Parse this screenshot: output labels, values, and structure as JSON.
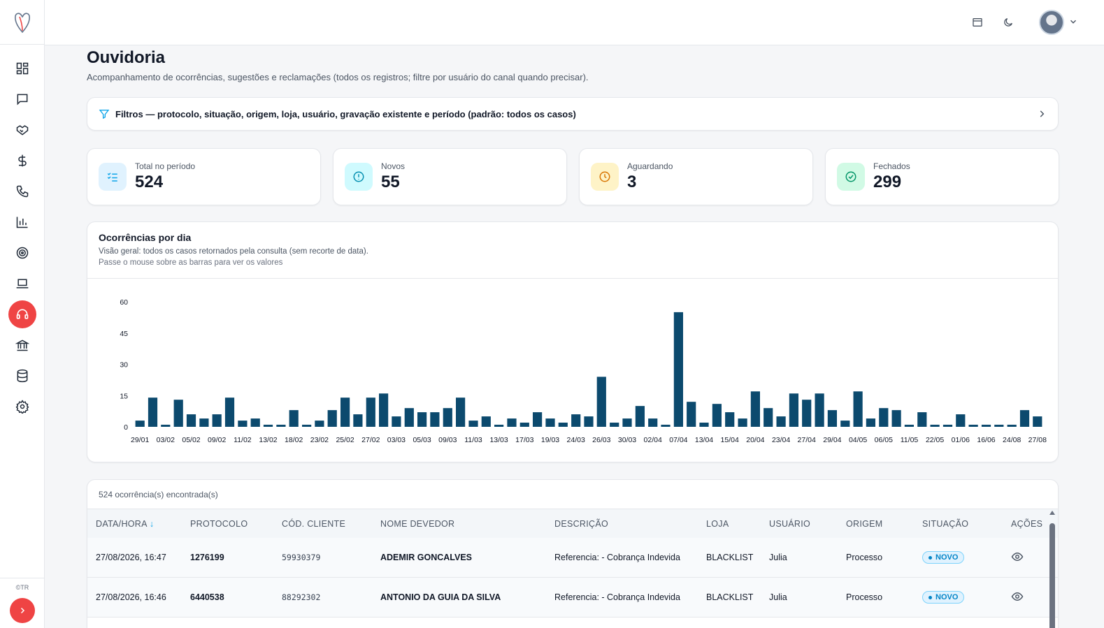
{
  "sidebar": {
    "items": [
      {
        "name": "dashboard",
        "icon": "grid-icon"
      },
      {
        "name": "messages",
        "icon": "message-icon"
      },
      {
        "name": "deals",
        "icon": "handshake-icon"
      },
      {
        "name": "finance",
        "icon": "dollar-icon"
      },
      {
        "name": "calls",
        "icon": "phone-icon"
      },
      {
        "name": "reports",
        "icon": "bar-chart-icon"
      },
      {
        "name": "goals",
        "icon": "target-icon"
      },
      {
        "name": "devices",
        "icon": "laptop-icon"
      },
      {
        "name": "ombudsman",
        "icon": "headset-icon",
        "active": true
      },
      {
        "name": "banks",
        "icon": "bank-icon"
      },
      {
        "name": "database",
        "icon": "database-icon"
      },
      {
        "name": "settings",
        "icon": "gear-icon"
      }
    ],
    "copyright": "©TR"
  },
  "page": {
    "title": "Ouvidoria",
    "subtitle": "Acompanhamento de ocorrências, sugestões e reclamações (todos os registros; filtre por usuário do canal quando precisar)."
  },
  "filters": {
    "label": "Filtros — protocolo, situação, origem, loja, usuário, gravação existente e período (padrão: todos os casos)"
  },
  "stats": [
    {
      "label": "Total no período",
      "value": "524",
      "color": "#0ea5e9",
      "bg": "#e0f2fe",
      "icon": "list-check-icon"
    },
    {
      "label": "Novos",
      "value": "55",
      "color": "#0891b2",
      "bg": "#cffafe",
      "icon": "alert-circle-icon"
    },
    {
      "label": "Aguardando",
      "value": "3",
      "color": "#d97706",
      "bg": "#fef3c7",
      "icon": "clock-icon"
    },
    {
      "label": "Fechados",
      "value": "299",
      "color": "#059669",
      "bg": "#d1fae5",
      "icon": "check-circle-icon"
    }
  ],
  "chart_title": "Ocorrências por dia",
  "chart_subtitle": "Visão geral: todos os casos retornados pela consulta (sem recorte de data).",
  "chart_hint": "Passe o mouse sobre as barras para ver os valores",
  "chart_data": {
    "type": "bar",
    "title": "Ocorrências por dia",
    "xlabel": "",
    "ylabel": "",
    "ylim": [
      0,
      60
    ],
    "yticks": [
      0,
      15,
      30,
      45,
      60
    ],
    "grid": false,
    "bar_color": "#0c4a6e",
    "x_tick_labels": [
      "29/01",
      "03/02",
      "05/02",
      "09/02",
      "11/02",
      "13/02",
      "18/02",
      "23/02",
      "25/02",
      "27/02",
      "03/03",
      "05/03",
      "09/03",
      "11/03",
      "13/03",
      "17/03",
      "19/03",
      "24/03",
      "26/03",
      "30/03",
      "02/04",
      "07/04",
      "13/04",
      "15/04",
      "20/04",
      "23/04",
      "27/04",
      "29/04",
      "04/05",
      "06/05",
      "11/05",
      "22/05",
      "01/06",
      "16/06",
      "24/08",
      "27/08"
    ],
    "values": [
      3,
      14,
      1,
      13,
      6,
      4,
      6,
      14,
      3,
      4,
      1,
      1,
      8,
      1,
      3,
      8,
      14,
      6,
      14,
      16,
      5,
      9,
      7,
      7,
      9,
      14,
      3,
      5,
      1,
      4,
      2,
      7,
      4,
      2,
      6,
      5,
      24,
      2,
      4,
      10,
      4,
      1,
      55,
      12,
      2,
      11,
      7,
      4,
      17,
      9,
      5,
      16,
      13,
      16,
      8,
      3,
      17,
      4,
      9,
      8,
      1,
      7,
      1,
      1,
      6,
      1,
      1,
      1,
      1,
      8,
      5
    ]
  },
  "table": {
    "count_text": "524 ocorrência(s) encontrada(s)",
    "headers": [
      "DATA/HORA",
      "PROTOCOLO",
      "CÓD. CLIENTE",
      "NOME DEVEDOR",
      "DESCRIÇÃO",
      "LOJA",
      "USUÁRIO",
      "ORIGEM",
      "SITUAÇÃO",
      "AÇÕES"
    ],
    "sort_indicator": "↓",
    "rows": [
      {
        "data_hora": "27/08/2026, 16:47",
        "protocolo": "1276199",
        "cod_cliente": "59930379",
        "nome": "ADEMIR GONCALVES",
        "descricao": "Referencia: - Cobrança Indevida",
        "loja": "BLACKLIST",
        "usuario": "Julia",
        "origem": "Processo",
        "situacao": "NOVO"
      },
      {
        "data_hora": "27/08/2026, 16:46",
        "protocolo": "6440538",
        "cod_cliente": "88292302",
        "nome": "ANTONIO DA GUIA DA SILVA",
        "descricao": "Referencia: - Cobrança Indevida",
        "loja": "BLACKLIST",
        "usuario": "Julia",
        "origem": "Processo",
        "situacao": "NOVO"
      }
    ]
  }
}
